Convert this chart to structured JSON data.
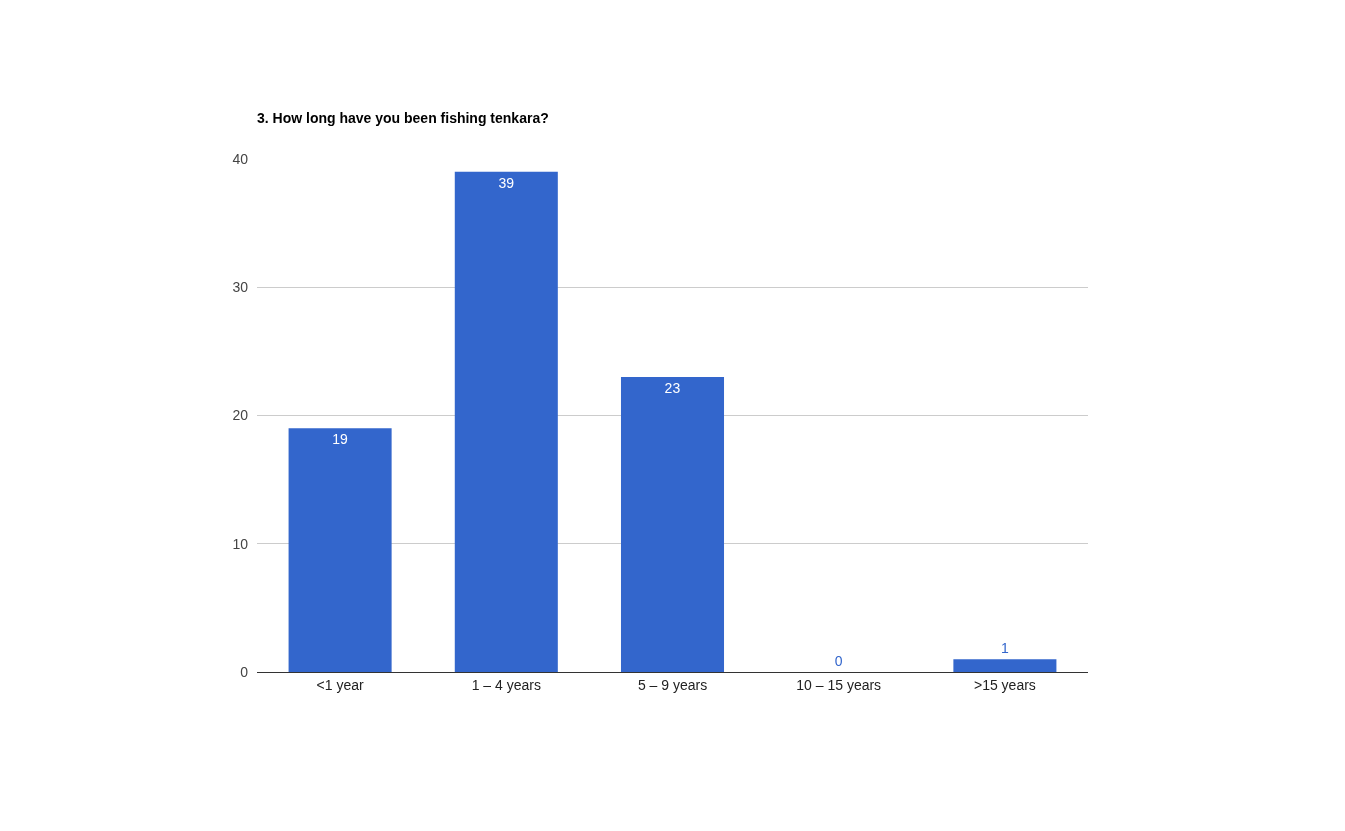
{
  "chart_data": {
    "type": "bar",
    "title": "3. How long have you been fishing tenkara?",
    "categories": [
      "<1 year",
      "1 – 4 years",
      "5 – 9 years",
      "10 – 15 years",
      ">15 years"
    ],
    "values": [
      19,
      39,
      23,
      0,
      1
    ],
    "color": "#3366cc",
    "ylim": [
      0,
      40
    ],
    "yticks": [
      0,
      10,
      20,
      30,
      40
    ],
    "grid": "y",
    "data_labels": true
  }
}
